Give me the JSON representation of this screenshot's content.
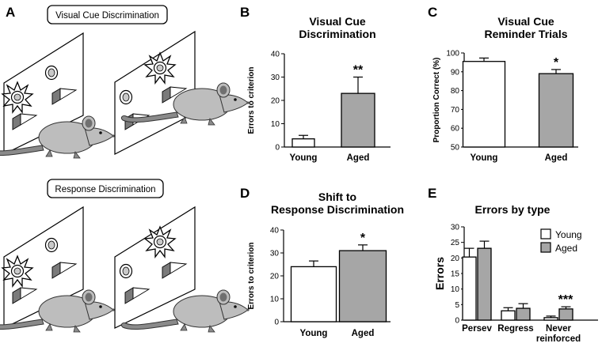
{
  "figure": {
    "panel_labels": {
      "A": "A",
      "B": "B",
      "C": "C",
      "D": "D",
      "E": "E"
    },
    "illustration": {
      "top_box_label": "Visual Cue Discrimination",
      "bottom_box_label": "Response Discrimination"
    }
  },
  "colors": {
    "young": "#ffffff",
    "aged": "#a6a6a6",
    "stroke": "#000000"
  },
  "chart_data": [
    {
      "id": "B",
      "type": "bar",
      "title": [
        "Visual Cue",
        "Discrimination"
      ],
      "ylabel": "Errors to criterion",
      "ylim": [
        0,
        40
      ],
      "yticks": [
        0,
        10,
        20,
        30,
        40
      ],
      "categories": [
        "Young",
        "Aged"
      ],
      "values": [
        3.5,
        23
      ],
      "errors": [
        1.5,
        7
      ],
      "significance": {
        "Aged": "**"
      }
    },
    {
      "id": "C",
      "type": "bar",
      "title": [
        "Visual Cue",
        "Reminder  Trials"
      ],
      "ylabel": "Proportion Correct (%)",
      "ylim": [
        50,
        100
      ],
      "yticks": [
        50,
        60,
        70,
        80,
        90,
        100
      ],
      "categories": [
        "Young",
        "Aged"
      ],
      "values": [
        95.5,
        89
      ],
      "errors": [
        1.8,
        2.2
      ],
      "significance": {
        "Aged": "*"
      }
    },
    {
      "id": "D",
      "type": "bar",
      "title": [
        "Shift to",
        "Response Discrimination"
      ],
      "ylabel": "Errors to criterion",
      "ylim": [
        0,
        40
      ],
      "yticks": [
        0,
        10,
        20,
        30,
        40
      ],
      "categories": [
        "Young",
        "Aged"
      ],
      "values": [
        24,
        31
      ],
      "errors": [
        2.5,
        2.5
      ],
      "significance": {
        "Aged": "*"
      }
    },
    {
      "id": "E",
      "type": "bar",
      "title": [
        "Errors by type"
      ],
      "ylabel": "Errors",
      "ylim": [
        0,
        30
      ],
      "yticks": [
        0,
        5,
        10,
        15,
        20,
        25,
        30
      ],
      "categories": [
        "Persev",
        "Regress",
        "Never\nreinforced"
      ],
      "series": [
        {
          "name": "Young",
          "values": [
            20.3,
            3.0,
            0.8
          ],
          "errors": [
            2.8,
            1.0,
            0.5
          ]
        },
        {
          "name": "Aged",
          "values": [
            23.1,
            3.8,
            3.6
          ],
          "errors": [
            2.3,
            1.5,
            0.7
          ]
        }
      ],
      "legend": "top-right",
      "significance": {
        "Never\nreinforced": "***"
      }
    }
  ]
}
